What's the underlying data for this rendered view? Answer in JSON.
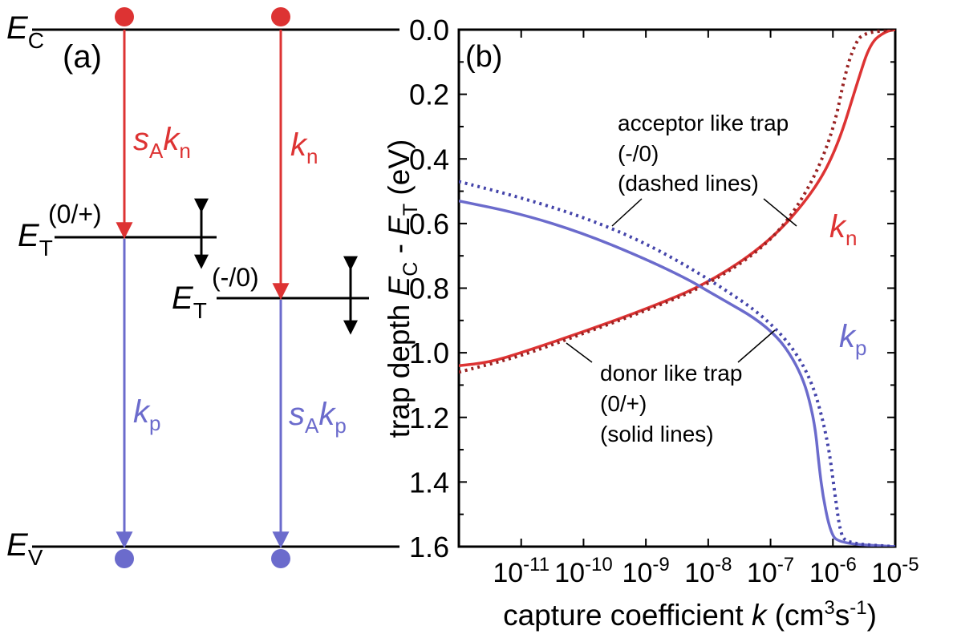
{
  "panel_a": {
    "label": "(a)",
    "ec": {
      "letter": "E",
      "sub": "C"
    },
    "ev": {
      "letter": "E",
      "sub": "V"
    },
    "et_donor": {
      "letter": "E",
      "sub": "T",
      "charge": "(0/+)"
    },
    "et_acceptor": {
      "letter": "E",
      "sub": "T",
      "charge": "(-/0)"
    },
    "donor_upper": {
      "s": "s",
      "s_sub": "A",
      "k": "k",
      "k_sub": "n"
    },
    "donor_lower": {
      "k": "k",
      "k_sub": "p"
    },
    "acceptor_upper": {
      "k": "k",
      "k_sub": "n"
    },
    "acceptor_lower": {
      "s": "s",
      "s_sub": "A",
      "k": "k",
      "k_sub": "p"
    },
    "colors": {
      "electron": "#dd3333",
      "hole": "#6b6bcc",
      "level": "#000000"
    }
  },
  "chart_data": {
    "type": "line",
    "panel_label": "(b)",
    "xlabel": {
      "pre": "capture coefficient ",
      "k": "k",
      "open": " (cm",
      "sup3": "3",
      "s": "s",
      "supm1": "-1",
      "close": ")"
    },
    "ylabel": {
      "pre": "trap depth ",
      "e1": "E",
      "e1sub": "C",
      "mid": " - ",
      "e2": "E",
      "e2sub": "T",
      "unit": " (eV)"
    },
    "x_scale": "log",
    "xlim": [
      1e-12,
      1e-05
    ],
    "ylim": [
      1.6,
      0.0
    ],
    "y_inverted": true,
    "x_ticks": [
      {
        "v": 1e-11,
        "base": "10",
        "exp": "-11"
      },
      {
        "v": 1e-10,
        "base": "10",
        "exp": "-10"
      },
      {
        "v": 1e-09,
        "base": "10",
        "exp": "-9"
      },
      {
        "v": 1e-08,
        "base": "10",
        "exp": "-8"
      },
      {
        "v": 1e-07,
        "base": "10",
        "exp": "-7"
      },
      {
        "v": 1e-06,
        "base": "10",
        "exp": "-6"
      },
      {
        "v": 1e-05,
        "base": "10",
        "exp": "-5"
      }
    ],
    "y_ticks": [
      "0.0",
      "0.2",
      "0.4",
      "0.6",
      "0.8",
      "1.0",
      "1.2",
      "1.4",
      "1.6"
    ],
    "grid": false,
    "series": [
      {
        "name": "kn",
        "style": "solid",
        "color": "#dd3333",
        "x": [
          1e-12,
          3e-12,
          1e-11,
          1e-10,
          1e-09,
          1e-08,
          1e-07,
          5e-07,
          1.2e-06,
          2.5e-06,
          4e-06,
          7e-06,
          1e-05
        ],
        "y": [
          1.04,
          1.03,
          1.0,
          0.935,
          0.865,
          0.785,
          0.655,
          0.5,
          0.36,
          0.16,
          0.04,
          0.005,
          0.0
        ]
      },
      {
        "name": "kn",
        "style": "dashed",
        "color": "#992222",
        "x": [
          1e-12,
          1e-11,
          1e-10,
          1e-09,
          1e-08,
          1e-07,
          4e-07,
          1e-06,
          1.6e-06,
          2.2e-06,
          3e-06,
          1e-05
        ],
        "y": [
          1.06,
          1.01,
          0.94,
          0.87,
          0.79,
          0.66,
          0.5,
          0.32,
          0.13,
          0.05,
          0.01,
          0.0
        ]
      },
      {
        "name": "kp",
        "style": "solid",
        "color": "#6b6bcc",
        "x": [
          1e-12,
          1e-11,
          1e-10,
          1e-09,
          5e-09,
          1e-08,
          1e-07,
          3e-07,
          5e-07,
          6e-07,
          7e-07,
          9e-07,
          1.2e-06,
          1e-05
        ],
        "y": [
          0.53,
          0.57,
          0.63,
          0.71,
          0.775,
          0.81,
          0.92,
          1.05,
          1.2,
          1.35,
          1.45,
          1.55,
          1.59,
          1.6
        ]
      },
      {
        "name": "kp",
        "style": "dashed",
        "color": "#4444aa",
        "x": [
          1e-12,
          1e-11,
          1e-10,
          1e-09,
          1e-08,
          1e-07,
          4e-07,
          8e-07,
          1.1e-06,
          1.3e-06,
          1.6e-06,
          1e-05
        ],
        "y": [
          0.47,
          0.52,
          0.58,
          0.66,
          0.77,
          0.9,
          1.05,
          1.25,
          1.45,
          1.55,
          1.59,
          1.6
        ]
      }
    ],
    "curve_labels": {
      "kn": {
        "k": "k",
        "sub": "n"
      },
      "kp": {
        "k": "k",
        "sub": "p"
      }
    },
    "annotations": {
      "acceptor": [
        "acceptor like trap",
        "(-/0)",
        "(dashed lines)"
      ],
      "donor": [
        "donor like trap",
        "(0/+)",
        "(solid lines)"
      ]
    }
  }
}
